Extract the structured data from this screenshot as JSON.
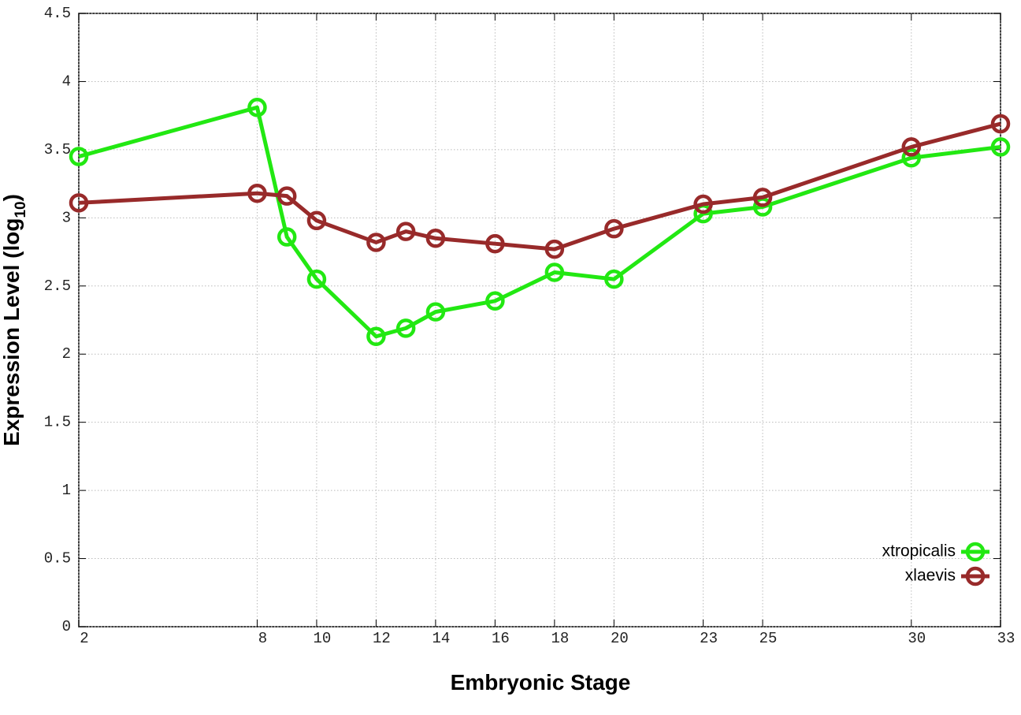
{
  "chart_data": {
    "type": "line",
    "xlabel": "Embryonic Stage",
    "ylabel": "Expression Level (log",
    "ylabel_sub": "10",
    "ylabel_end": ")",
    "x": [
      2,
      8,
      9,
      10,
      12,
      13,
      14,
      16,
      18,
      20,
      23,
      25,
      30,
      33
    ],
    "series": [
      {
        "name": "xtropicalis",
        "color": "#22e812",
        "values": [
          3.45,
          3.81,
          2.86,
          2.55,
          2.13,
          2.19,
          2.31,
          2.39,
          2.6,
          2.55,
          3.03,
          3.08,
          3.44,
          3.52
        ]
      },
      {
        "name": "xlaevis",
        "color": "#982a2a",
        "values": [
          3.11,
          3.18,
          3.16,
          2.98,
          2.82,
          2.9,
          2.85,
          2.81,
          2.77,
          2.92,
          3.1,
          3.15,
          3.52,
          3.69
        ]
      }
    ],
    "xlim": [
      2,
      33
    ],
    "xticks": [
      2,
      8,
      10,
      12,
      14,
      16,
      18,
      20,
      23,
      25,
      30,
      33
    ],
    "ylim": [
      0,
      4.5
    ],
    "yticks": [
      0,
      0.5,
      1,
      1.5,
      2,
      2.5,
      3,
      3.5,
      4,
      4.5
    ],
    "grid": true,
    "legend": "lower right"
  }
}
